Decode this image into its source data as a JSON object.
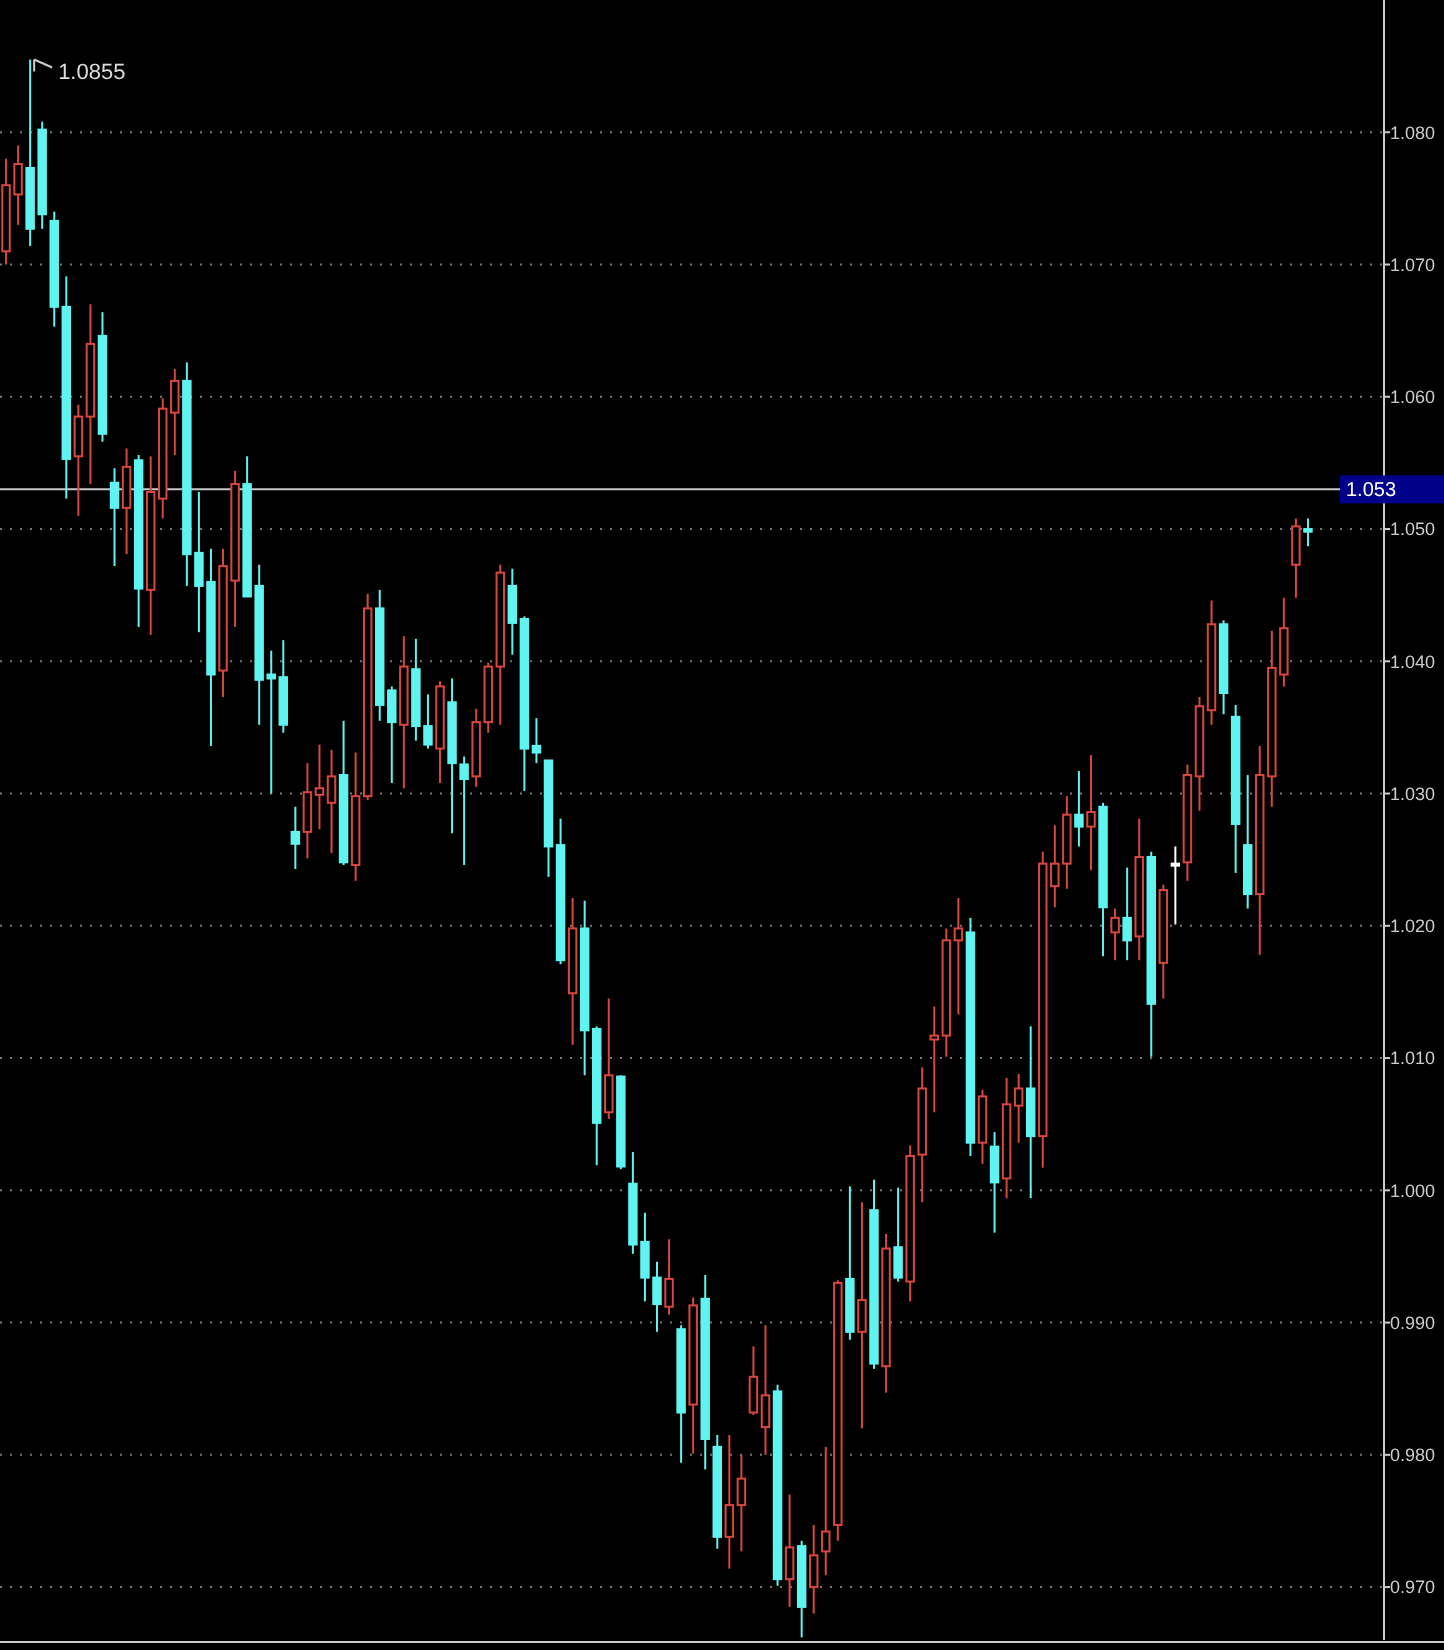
{
  "chart_data": {
    "type": "candlestick",
    "categories": [
      null,
      null,
      null,
      null,
      null,
      null,
      null,
      null,
      null,
      null,
      null,
      null,
      null,
      null,
      null,
      null,
      null,
      null,
      null,
      null,
      null,
      null,
      null,
      null,
      null,
      null,
      null,
      null,
      null,
      null,
      null,
      null,
      null,
      null,
      null,
      null,
      null,
      null,
      null,
      null,
      null,
      null,
      null,
      null,
      null,
      null,
      null,
      null,
      null,
      null,
      null,
      null,
      null,
      null,
      null,
      null,
      null,
      null,
      null,
      null,
      null,
      null,
      null,
      null,
      null,
      null,
      null,
      null,
      null,
      null,
      null,
      null,
      null,
      null,
      null,
      null,
      null,
      null,
      null,
      null,
      null,
      null,
      null,
      null,
      null,
      null,
      null,
      null,
      null,
      null,
      null,
      null,
      null,
      null,
      null,
      null,
      null,
      null,
      null,
      null,
      null,
      null,
      null,
      null,
      null,
      null,
      null,
      null,
      null
    ],
    "ohlc": [
      [
        1.071,
        1.078,
        1.07,
        1.076
      ],
      [
        1.0753,
        1.079,
        1.073,
        1.0776
      ],
      [
        1.0773,
        1.0855,
        1.0714,
        1.0727
      ],
      [
        1.0802,
        1.0808,
        1.0727,
        1.0738
      ],
      [
        1.0733,
        1.074,
        1.0653,
        1.0668
      ],
      [
        1.0668,
        1.0691,
        1.0523,
        1.0553
      ],
      [
        1.0555,
        1.0594,
        1.051,
        1.0585
      ],
      [
        1.0585,
        1.067,
        1.0534,
        1.064
      ],
      [
        1.0646,
        1.0664,
        1.0566,
        1.0572
      ],
      [
        1.0535,
        1.0546,
        1.0472,
        1.0516
      ],
      [
        1.0516,
        1.0561,
        1.0481,
        1.0547
      ],
      [
        1.0552,
        1.0556,
        1.0426,
        1.0455
      ],
      [
        1.0454,
        1.0555,
        1.042,
        1.0528
      ],
      [
        1.0523,
        1.0599,
        1.0508,
        1.0591
      ],
      [
        1.0588,
        1.0621,
        1.0556,
        1.0612
      ],
      [
        1.0612,
        1.0626,
        1.0457,
        1.0481
      ],
      [
        1.0482,
        1.0528,
        1.0422,
        1.0457
      ],
      [
        1.046,
        1.0485,
        1.0336,
        1.039
      ],
      [
        1.0393,
        1.0485,
        1.0373,
        1.0472
      ],
      [
        1.0461,
        1.0544,
        1.0426,
        1.0534
      ],
      [
        1.0534,
        1.0555,
        1.0449,
        1.0449
      ],
      [
        1.0457,
        1.0473,
        1.0352,
        1.0386
      ],
      [
        1.039,
        1.0408,
        1.03,
        1.0387
      ],
      [
        1.0388,
        1.0416,
        1.0346,
        1.0352
      ],
      [
        1.0271,
        1.029,
        1.0243,
        1.0262
      ],
      [
        1.0271,
        1.0323,
        1.0251,
        1.0301
      ],
      [
        1.0299,
        1.0337,
        1.0273,
        1.0304
      ],
      [
        1.0293,
        1.0333,
        1.0255,
        1.0313
      ],
      [
        1.0314,
        1.0355,
        1.0246,
        1.0248
      ],
      [
        1.0246,
        1.0331,
        1.0234,
        1.0298
      ],
      [
        1.0298,
        1.0451,
        1.0295,
        1.044
      ],
      [
        1.044,
        1.0454,
        1.0355,
        1.0367
      ],
      [
        1.0378,
        1.0381,
        1.0308,
        1.0354
      ],
      [
        1.0352,
        1.0419,
        1.0304,
        1.0396
      ],
      [
        1.0394,
        1.0417,
        1.034,
        1.0351
      ],
      [
        1.0351,
        1.0375,
        1.0334,
        1.0337
      ],
      [
        1.0334,
        1.0385,
        1.0308,
        1.0381
      ],
      [
        1.0369,
        1.0387,
        1.027,
        1.0323
      ],
      [
        1.0322,
        1.0328,
        1.0246,
        1.0311
      ],
      [
        1.0313,
        1.0364,
        1.0305,
        1.0354
      ],
      [
        1.0354,
        1.0399,
        1.0346,
        1.0396
      ],
      [
        1.0396,
        1.0473,
        1.0352,
        1.0467
      ],
      [
        1.0457,
        1.047,
        1.0405,
        1.0429
      ],
      [
        1.0432,
        1.0434,
        1.0302,
        1.0334
      ],
      [
        1.0336,
        1.0357,
        1.0323,
        1.0331
      ],
      [
        1.0325,
        1.0325,
        1.0237,
        1.026
      ],
      [
        1.0261,
        1.0281,
        1.0171,
        1.0174
      ],
      [
        1.0149,
        1.0221,
        1.011,
        1.0198
      ],
      [
        1.0198,
        1.0219,
        1.0087,
        1.0121
      ],
      [
        1.0122,
        1.0124,
        1.0019,
        1.0051
      ],
      [
        1.0059,
        1.0145,
        1.0054,
        1.0087
      ],
      [
        1.0086,
        1.0087,
        1.0016,
        1.0018
      ],
      [
        1.0005,
        1.0029,
        0.9952,
        0.9959
      ],
      [
        0.9961,
        0.9983,
        0.9916,
        0.9934
      ],
      [
        0.9934,
        0.9946,
        0.9893,
        0.9914
      ],
      [
        0.9912,
        0.9963,
        0.9906,
        0.9933
      ],
      [
        0.9895,
        0.9898,
        0.9794,
        0.9832
      ],
      [
        0.9838,
        0.9919,
        0.9801,
        0.9913
      ],
      [
        0.9918,
        0.9936,
        0.9789,
        0.9812
      ],
      [
        0.9806,
        0.9815,
        0.9729,
        0.9738
      ],
      [
        0.9738,
        0.9815,
        0.9714,
        0.9762
      ],
      [
        0.9762,
        0.98,
        0.9727,
        0.9782
      ],
      [
        0.9832,
        0.9882,
        0.983,
        0.9859
      ],
      [
        0.9821,
        0.9898,
        0.98,
        0.9845
      ],
      [
        0.9848,
        0.9853,
        0.9701,
        0.9706
      ],
      [
        0.9706,
        0.977,
        0.9685,
        0.973
      ],
      [
        0.9731,
        0.9735,
        0.9662,
        0.9685
      ],
      [
        0.97,
        0.9747,
        0.968,
        0.9724
      ],
      [
        0.9727,
        0.9806,
        0.9709,
        0.9742
      ],
      [
        0.9747,
        0.9932,
        0.9735,
        0.993
      ],
      [
        0.9933,
        1.0003,
        0.9887,
        0.9893
      ],
      [
        0.9893,
        0.9991,
        0.982,
        0.9917
      ],
      [
        0.9985,
        1.0008,
        0.9865,
        0.9869
      ],
      [
        0.9867,
        0.9967,
        0.9847,
        0.9956
      ],
      [
        0.9957,
        1.0002,
        0.9931,
        0.9934
      ],
      [
        0.9931,
        1.0034,
        0.9916,
        1.0026
      ],
      [
        1.0027,
        1.0093,
        0.9991,
        1.0077
      ],
      [
        1.0114,
        1.0139,
        1.0059,
        1.0117
      ],
      [
        1.0117,
        1.0198,
        1.0101,
        1.0189
      ],
      [
        1.0189,
        1.0221,
        1.0133,
        1.0198
      ],
      [
        1.0195,
        1.0206,
        1.0026,
        1.0036
      ],
      [
        1.0036,
        1.0076,
        1.002,
        1.0071
      ],
      [
        1.0033,
        1.0044,
        0.9968,
        1.0006
      ],
      [
        1.0009,
        1.0085,
        0.9994,
        1.0065
      ],
      [
        1.0064,
        1.0088,
        1.0036,
        1.0077
      ],
      [
        1.0077,
        1.0124,
        0.9994,
        1.0041
      ],
      [
        1.0041,
        1.0256,
        1.0017,
        1.0247
      ],
      [
        1.023,
        1.0276,
        1.0214,
        1.0247
      ],
      [
        1.0247,
        1.0298,
        1.0228,
        1.0284
      ],
      [
        1.0284,
        1.0317,
        1.026,
        1.0275
      ],
      [
        1.0275,
        1.0329,
        1.0242,
        1.0286
      ],
      [
        1.029,
        1.0293,
        1.0177,
        1.0214
      ],
      [
        1.0195,
        1.0213,
        1.0174,
        1.0206
      ],
      [
        1.0206,
        1.0244,
        1.0174,
        1.0189
      ],
      [
        1.0192,
        1.0281,
        1.0174,
        1.0252
      ],
      [
        1.0252,
        1.0256,
        1.0101,
        1.0141
      ],
      [
        1.0172,
        1.0231,
        1.0145,
        1.0227
      ],
      [
        1.0247,
        1.026,
        1.0201,
        1.0247
      ],
      [
        1.0248,
        1.0322,
        1.0234,
        1.0314
      ],
      [
        1.0313,
        1.0373,
        1.0287,
        1.0366
      ],
      [
        1.0363,
        1.0446,
        1.0352,
        1.0428
      ],
      [
        1.0428,
        1.0431,
        1.036,
        1.0376
      ],
      [
        1.0358,
        1.0367,
        1.024,
        1.0277
      ],
      [
        1.0261,
        1.0314,
        1.0213,
        1.0224
      ],
      [
        1.0224,
        1.0336,
        1.0178,
        1.0314
      ],
      [
        1.0313,
        1.0423,
        1.029,
        1.0395
      ],
      [
        1.039,
        1.0448,
        1.0381,
        1.0425
      ],
      [
        1.0473,
        1.0508,
        1.0448,
        1.0502
      ],
      [
        1.05,
        1.0508,
        1.0487,
        1.0498
      ]
    ],
    "colors": [
      "#d8473f",
      "#d8473f",
      "#5ff4f0",
      "#5ff4f0",
      "#5ff4f0",
      "#5ff4f0",
      "#d8473f",
      "#d8473f",
      "#5ff4f0",
      "#5ff4f0",
      "#d8473f",
      "#5ff4f0",
      "#d8473f",
      "#d8473f",
      "#d8473f",
      "#5ff4f0",
      "#5ff4f0",
      "#5ff4f0",
      "#d8473f",
      "#d8473f",
      "#5ff4f0",
      "#5ff4f0",
      "#5ff4f0",
      "#5ff4f0",
      "#5ff4f0",
      "#d8473f",
      "#d8473f",
      "#d8473f",
      "#5ff4f0",
      "#d8473f",
      "#d8473f",
      "#5ff4f0",
      "#5ff4f0",
      "#d8473f",
      "#5ff4f0",
      "#5ff4f0",
      "#d8473f",
      "#5ff4f0",
      "#5ff4f0",
      "#d8473f",
      "#d8473f",
      "#d8473f",
      "#5ff4f0",
      "#5ff4f0",
      "#5ff4f0",
      "#5ff4f0",
      "#5ff4f0",
      "#d8473f",
      "#5ff4f0",
      "#5ff4f0",
      "#d8473f",
      "#5ff4f0",
      "#5ff4f0",
      "#5ff4f0",
      "#5ff4f0",
      "#d8473f",
      "#5ff4f0",
      "#d8473f",
      "#5ff4f0",
      "#5ff4f0",
      "#d8473f",
      "#d8473f",
      "#d8473f",
      "#d8473f",
      "#5ff4f0",
      "#d8473f",
      "#5ff4f0",
      "#d8473f",
      "#d8473f",
      "#d8473f",
      "#5ff4f0",
      "#d8473f",
      "#5ff4f0",
      "#d8473f",
      "#5ff4f0",
      "#d8473f",
      "#d8473f",
      "#d8473f",
      "#d8473f",
      "#d8473f",
      "#5ff4f0",
      "#d8473f",
      "#5ff4f0",
      "#d8473f",
      "#d8473f",
      "#5ff4f0",
      "#d8473f",
      "#d8473f",
      "#d8473f",
      "#5ff4f0",
      "#d8473f",
      "#5ff4f0",
      "#d8473f",
      "#5ff4f0",
      "#d8473f",
      "#5ff4f0",
      "#d8473f",
      "#ffffff",
      "#d8473f",
      "#d8473f",
      "#d8473f",
      "#5ff4f0",
      "#5ff4f0",
      "#5ff4f0",
      "#d8473f",
      "#d8473f",
      "#d8473f",
      "#d8473f",
      "#5ff4f0"
    ],
    "ylim": [
      0.966,
      1.09
    ],
    "yticks": [
      {
        "value": 0.97,
        "label": "0.970"
      },
      {
        "value": 0.98,
        "label": "0.980"
      },
      {
        "value": 0.99,
        "label": "0.990"
      },
      {
        "value": 1.0,
        "label": "1.000"
      },
      {
        "value": 1.01,
        "label": "1.010"
      },
      {
        "value": 1.02,
        "label": "1.020"
      },
      {
        "value": 1.03,
        "label": "1.030"
      },
      {
        "value": 1.04,
        "label": "1.040"
      },
      {
        "value": 1.05,
        "label": "1.050"
      },
      {
        "value": 1.06,
        "label": "1.060"
      },
      {
        "value": 1.07,
        "label": "1.070"
      },
      {
        "value": 1.08,
        "label": "1.080"
      }
    ],
    "grid": "y",
    "tick_labels": "y",
    "ref_lines": [
      {
        "axis": "y",
        "value": 1.053,
        "label": "1.053",
        "color": "#c8c8c8"
      }
    ],
    "annotations": [
      "1.0855"
    ]
  }
}
